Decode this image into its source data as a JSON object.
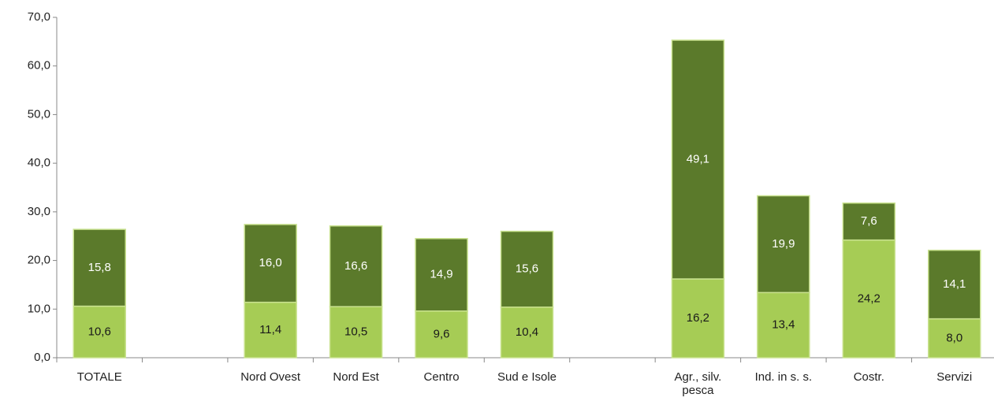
{
  "chart_data": {
    "type": "stacked_bar",
    "categories": [
      "TOTALE",
      null,
      "Nord Ovest",
      "Nord Est",
      "Centro",
      "Sud e Isole",
      null,
      "Agr., silv. pesca",
      "Ind. in s. s.",
      "Costr.",
      "Servizi"
    ],
    "series": [
      {
        "color": "#a6cc55",
        "label_color": "#1a1a1a",
        "values": [
          10.6,
          null,
          11.4,
          10.5,
          9.6,
          10.4,
          null,
          16.2,
          13.4,
          24.2,
          8.0
        ],
        "value_labels": [
          "10,6",
          null,
          "11,4",
          "10,5",
          "9,6",
          "10,4",
          null,
          "16,2",
          "13,4",
          "24,2",
          "8,0"
        ]
      },
      {
        "color": "#5b7a2b",
        "label_color": "#ffffff",
        "values": [
          15.8,
          null,
          16.0,
          16.6,
          14.9,
          15.6,
          null,
          49.1,
          19.9,
          7.6,
          14.1
        ],
        "value_labels": [
          "15,8",
          null,
          "16,0",
          "16,6",
          "14,9",
          "15,6",
          null,
          "49,1",
          "19,9",
          "7,6",
          "14,1"
        ]
      }
    ],
    "ylim": [
      0,
      70
    ],
    "yticks": [
      {
        "value": 0,
        "label": "0,0"
      },
      {
        "value": 10,
        "label": "10,0"
      },
      {
        "value": 20,
        "label": "20,0"
      },
      {
        "value": 30,
        "label": "30,0"
      },
      {
        "value": 40,
        "label": "40,0"
      },
      {
        "value": 50,
        "label": "50,0"
      },
      {
        "value": 60,
        "label": "60,0"
      },
      {
        "value": 70,
        "label": "70,0"
      }
    ]
  }
}
